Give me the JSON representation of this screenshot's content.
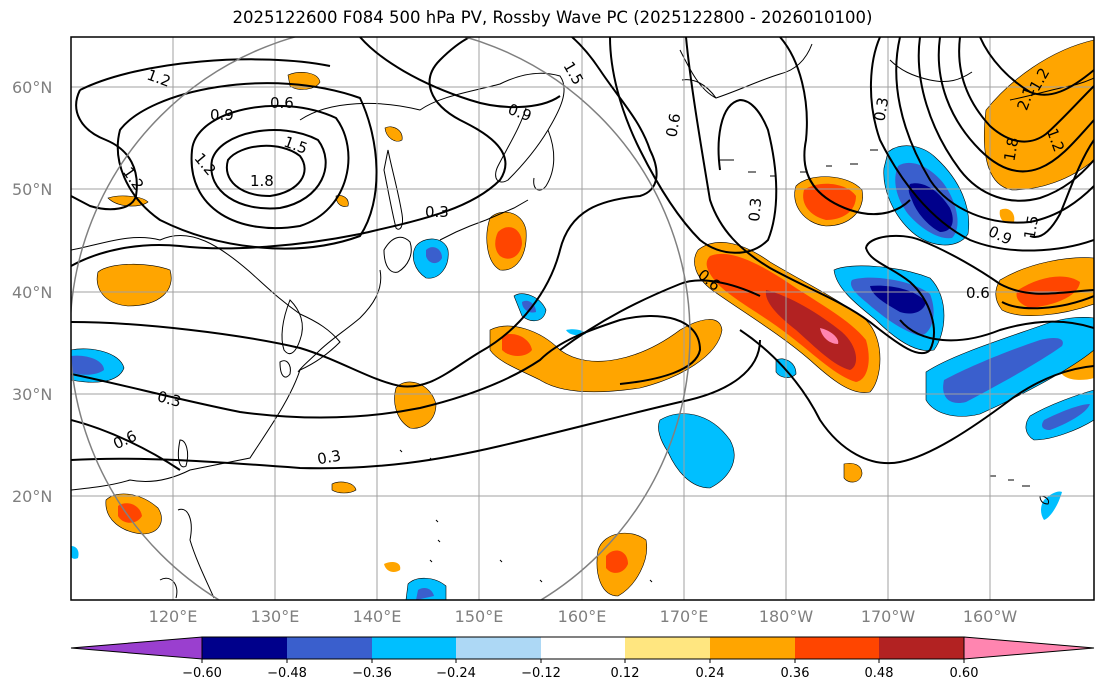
{
  "title": "2025122600 F084 500 hPa PV, Rossby Wave PC (2025122800 - 2026010100)",
  "lon_ticks": [
    "120°E",
    "130°E",
    "140°E",
    "150°E",
    "160°E",
    "170°E",
    "180°W",
    "170°W",
    "160°W"
  ],
  "lat_ticks": [
    "20°N",
    "30°N",
    "40°N",
    "50°N",
    "60°N"
  ],
  "colorbar": {
    "levels": [
      "−0.60",
      "−0.48",
      "−0.36",
      "−0.24",
      "−0.12",
      "0.12",
      "0.24",
      "0.36",
      "0.48",
      "0.60"
    ],
    "colors": [
      "#9a3fcf",
      "#00008b",
      "#3a5fcd",
      "#00bfff",
      "#add8f5",
      "#ffffff",
      "#ffe680",
      "#ffa500",
      "#ff4500",
      "#b22222",
      "#ff85b0"
    ]
  },
  "contour_labels": [
    "1.2",
    "0.6",
    "0.9",
    "1.5",
    "1.8",
    "1.2",
    "1.2",
    "0.3",
    "0.9",
    "1.5",
    "0.6",
    "0.3",
    "0.6",
    "0.3",
    "0.6",
    "0.3",
    "0.3",
    "1.2",
    "2.1",
    "1.8",
    "1.2",
    "1.5",
    "0.9",
    "0.6"
  ]
}
